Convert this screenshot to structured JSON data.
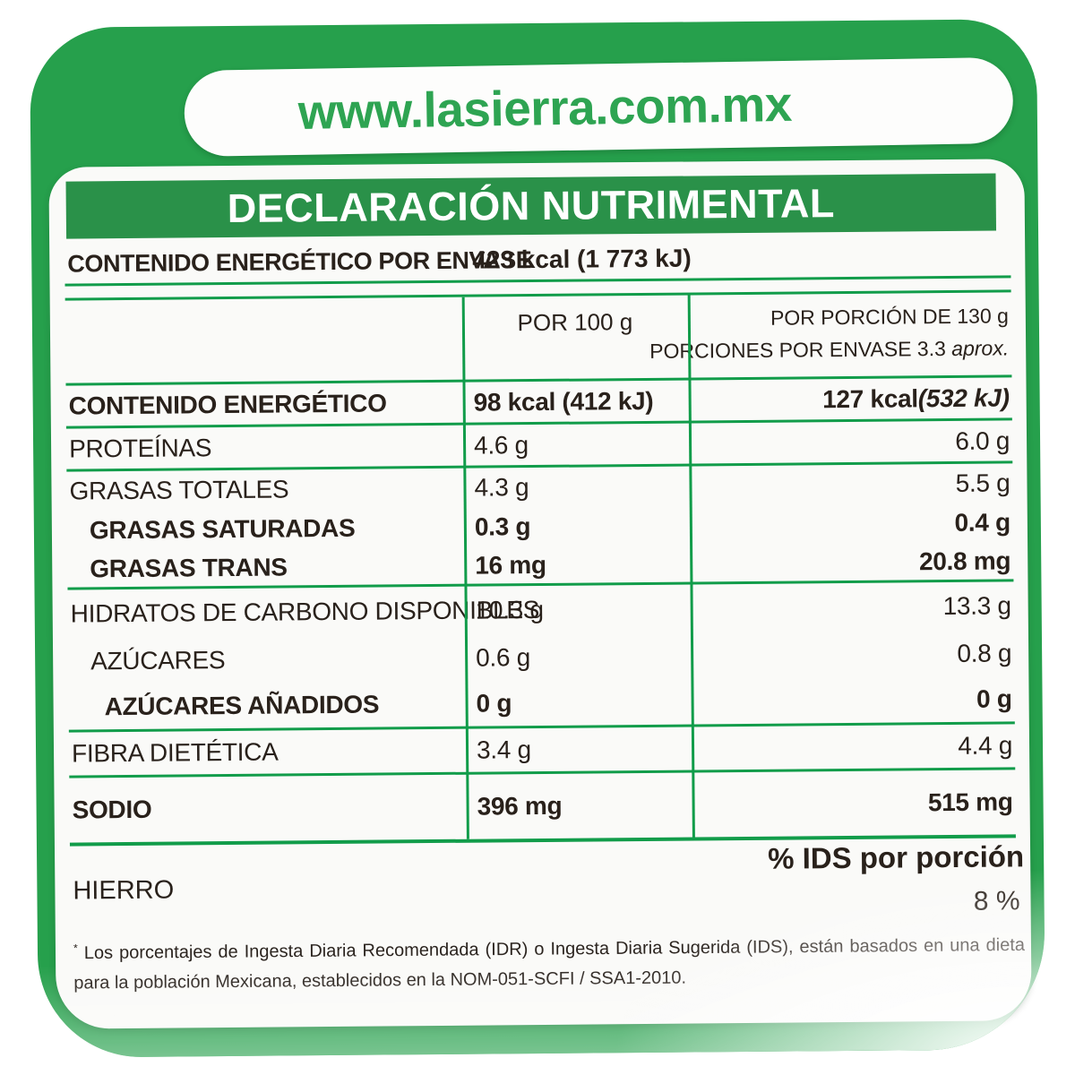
{
  "colors": {
    "label-green": "#26a04c",
    "bar-green": "#2a9149",
    "line-green": "#119c4a",
    "url-green": "#2ea452",
    "ink": "#29211b"
  },
  "label": {
    "website": "www.lasierra.com.mx",
    "header_title": "DECLARACIÓN NUTRIMENTAL",
    "package_energy": {
      "label": "CONTENIDO ENERGÉTICO POR ENVASE",
      "value": "423 kcal (1 773 kJ)"
    },
    "table": {
      "headers": {
        "per100": "POR 100 g",
        "portion_line1": "POR PORCIÓN DE 130 g",
        "portion_line2": "PORCIONES POR ENVASE 3.3 ",
        "portion_line2_italic": "aprox."
      },
      "rows": [
        {
          "label": "CONTENIDO ENERGÉTICO",
          "bold": true,
          "indent": 0,
          "per100": "98 kcal (412 kJ)",
          "portion": "127 kcal ",
          "portion_italic": "(532 kJ)"
        },
        {
          "label": "PROTEÍNAS",
          "bold": false,
          "indent": 0,
          "per100": "4.6 g",
          "portion": "6.0 g",
          "portion_italic": ""
        },
        {
          "label": "GRASAS TOTALES",
          "bold": false,
          "indent": 0,
          "per100": "4.3 g",
          "portion": "5.5 g",
          "portion_italic": ""
        },
        {
          "label": "GRASAS SATURADAS",
          "bold": true,
          "indent": 1,
          "per100": "0.3 g",
          "portion": "0.4 g",
          "portion_italic": ""
        },
        {
          "label": "GRASAS TRANS",
          "bold": true,
          "indent": 1,
          "per100": "16 mg",
          "portion": "20.8 mg",
          "portion_italic": ""
        },
        {
          "label": "HIDRATOS DE CARBONO DISPONIBLES",
          "bold": false,
          "indent": 0,
          "per100": "10.3 g",
          "portion": "13.3 g",
          "portion_italic": ""
        },
        {
          "label": "AZÚCARES",
          "bold": false,
          "indent": 1,
          "per100": "0.6 g",
          "portion": "0.8 g",
          "portion_italic": ""
        },
        {
          "label": "AZÚCARES AÑADIDOS",
          "bold": true,
          "indent": 2,
          "per100": "0 g",
          "portion": "0 g",
          "portion_italic": ""
        },
        {
          "label": "FIBRA DIETÉTICA",
          "bold": false,
          "indent": 0,
          "per100": "3.4 g",
          "portion": "4.4 g",
          "portion_italic": ""
        },
        {
          "label": "SODIO",
          "bold": true,
          "indent": 0,
          "per100": "396 mg",
          "portion": "515 mg",
          "portion_italic": ""
        }
      ]
    },
    "ids": {
      "heading": "% IDS por porción",
      "rows": [
        {
          "label": "HIERRO",
          "value": "8 %"
        }
      ]
    },
    "footnote_marker": "*",
    "footnote": " Los porcentajes de Ingesta Diaria Recomendada (IDR) o Ingesta Diaria Sugerida (IDS), están basados en una dieta para la población Mexicana, establecidos en la NOM-051-SCFI / SSA1-2010."
  }
}
